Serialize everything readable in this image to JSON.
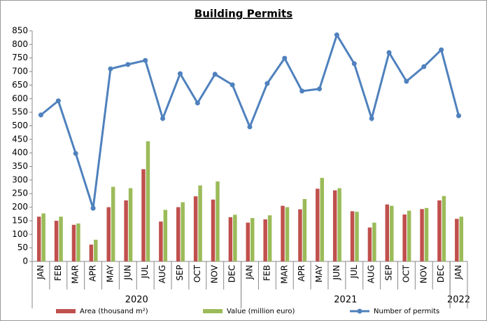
{
  "chart_data": {
    "type": "bar-line",
    "title": "Building Permits",
    "categories": [
      "JAN",
      "FEB",
      "MAR",
      "APR",
      "MAY",
      "JUN",
      "JUL",
      "AUG",
      "SEP",
      "OCT",
      "NOV",
      "DEC",
      "JAN",
      "FEB",
      "MAR",
      "APR",
      "MAY",
      "JUN",
      "JUL",
      "AUG",
      "SEP",
      "OCT",
      "NOV",
      "DEC",
      "JAN"
    ],
    "years": [
      {
        "label": "2020",
        "count": 12
      },
      {
        "label": "2021",
        "count": 12
      },
      {
        "label": "2022",
        "count": 1
      }
    ],
    "series": [
      {
        "name": "Area (thousand m²)",
        "type": "bar",
        "color": "#c0504d",
        "values": [
          165,
          150,
          135,
          62,
          200,
          225,
          340,
          147,
          200,
          240,
          228,
          163,
          143,
          155,
          205,
          192,
          268,
          262,
          185,
          125,
          210,
          173,
          193,
          225,
          157
        ]
      },
      {
        "name": "Value (million euro)",
        "type": "bar",
        "color": "#9bbb59",
        "values": [
          177,
          165,
          140,
          80,
          275,
          270,
          443,
          190,
          218,
          280,
          295,
          172,
          160,
          170,
          200,
          230,
          308,
          270,
          183,
          143,
          205,
          187,
          197,
          241,
          165
        ]
      },
      {
        "name": "Number of permits",
        "type": "line",
        "color": "#4f81bd",
        "values": [
          540,
          592,
          398,
          196,
          710,
          726,
          741,
          527,
          692,
          584,
          690,
          651,
          496,
          656,
          749,
          628,
          636,
          835,
          729,
          527,
          770,
          664,
          718,
          780,
          537
        ]
      }
    ],
    "ylim": [
      0,
      850
    ],
    "yticks": [
      0,
      50,
      100,
      150,
      200,
      250,
      300,
      350,
      400,
      450,
      500,
      550,
      600,
      650,
      700,
      750,
      800,
      850
    ],
    "grid": false
  }
}
